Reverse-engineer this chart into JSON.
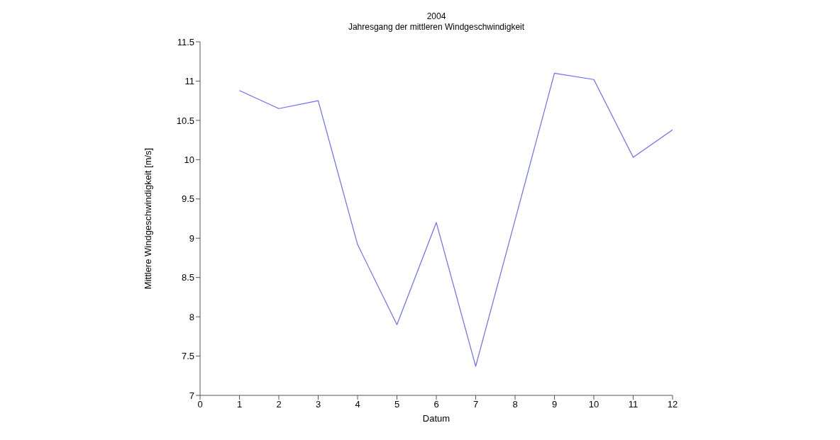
{
  "chart_data": {
    "type": "line",
    "title": "2004",
    "subtitle": "Jahresgang der mittleren Windgeschwindigkeit",
    "xlabel": "Datum",
    "ylabel": "Mittlere Windgeschwindigkeit [m/s]",
    "x": [
      1,
      2,
      3,
      4,
      5,
      6,
      7,
      8,
      9,
      10,
      11,
      12
    ],
    "series": [
      {
        "color": "#6b6bff",
        "values": [
          10.88,
          10.65,
          10.75,
          8.92,
          7.9,
          9.2,
          7.37,
          9.23,
          11.1,
          11.02,
          10.03,
          10.38
        ]
      }
    ],
    "xlim": [
      0,
      12
    ],
    "xticks": [
      0,
      1,
      2,
      3,
      4,
      5,
      6,
      7,
      8,
      9,
      10,
      11,
      12
    ],
    "ylim": [
      7,
      11.5
    ],
    "yticks": [
      7,
      7.5,
      8,
      8.5,
      9,
      9.5,
      10,
      10.5,
      11,
      11.5
    ],
    "grid": false,
    "legend": false,
    "marker": "none",
    "line_style": "solid"
  }
}
